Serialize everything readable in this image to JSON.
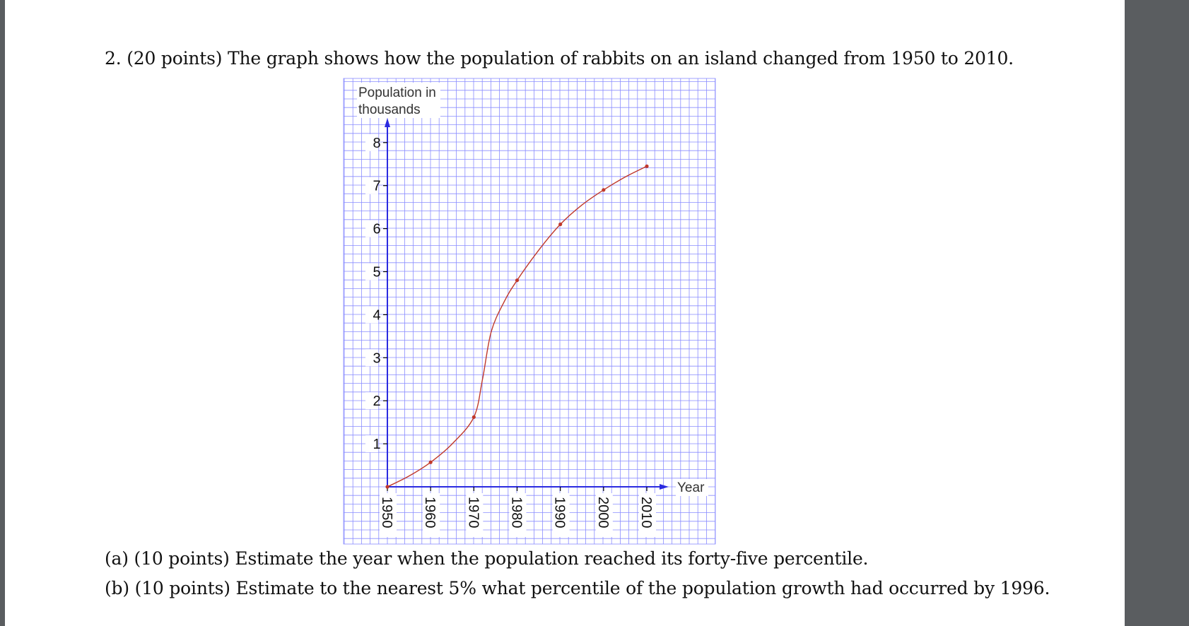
{
  "question": {
    "title": "2. (20 points) The graph shows how the population of rabbits on an island changed from 1950 to 2010.",
    "part_a": "(a) (10 points) Estimate the year when the population reached its forty-five percentile.",
    "part_b": "(b) (10 points) Estimate to the nearest 5% what percentile of the population growth had occurred by 1996."
  },
  "chart_data": {
    "type": "line",
    "ylabel": "Population in thousands",
    "xlabel": "Year",
    "x": [
      1950,
      1960,
      1970,
      1980,
      1990,
      2000,
      2010
    ],
    "series": [
      {
        "values": [
          0,
          0.57,
          1.62,
          4.8,
          6.1,
          6.9,
          7.45
        ]
      }
    ],
    "curve": [
      [
        1950,
        0
      ],
      [
        1955,
        0.25
      ],
      [
        1960,
        0.57
      ],
      [
        1965,
        1.0
      ],
      [
        1970,
        1.62
      ],
      [
        1972,
        2.5
      ],
      [
        1974,
        3.6
      ],
      [
        1977,
        4.3
      ],
      [
        1980,
        4.8
      ],
      [
        1985,
        5.5
      ],
      [
        1990,
        6.1
      ],
      [
        1995,
        6.55
      ],
      [
        2000,
        6.9
      ],
      [
        2005,
        7.2
      ],
      [
        2010,
        7.45
      ]
    ],
    "x_ticks": [
      "1950",
      "1960",
      "1970",
      "1980",
      "1990",
      "2000",
      "2010"
    ],
    "y_ticks": [
      "1",
      "2",
      "3",
      "4",
      "5",
      "6",
      "7",
      "8"
    ],
    "xlim": [
      1950,
      2010
    ],
    "ylim": [
      0,
      8
    ],
    "grid": true,
    "colors": {
      "grid": "#8a8dff",
      "axis": "#2a2ae0",
      "line": "#c0392b"
    }
  }
}
